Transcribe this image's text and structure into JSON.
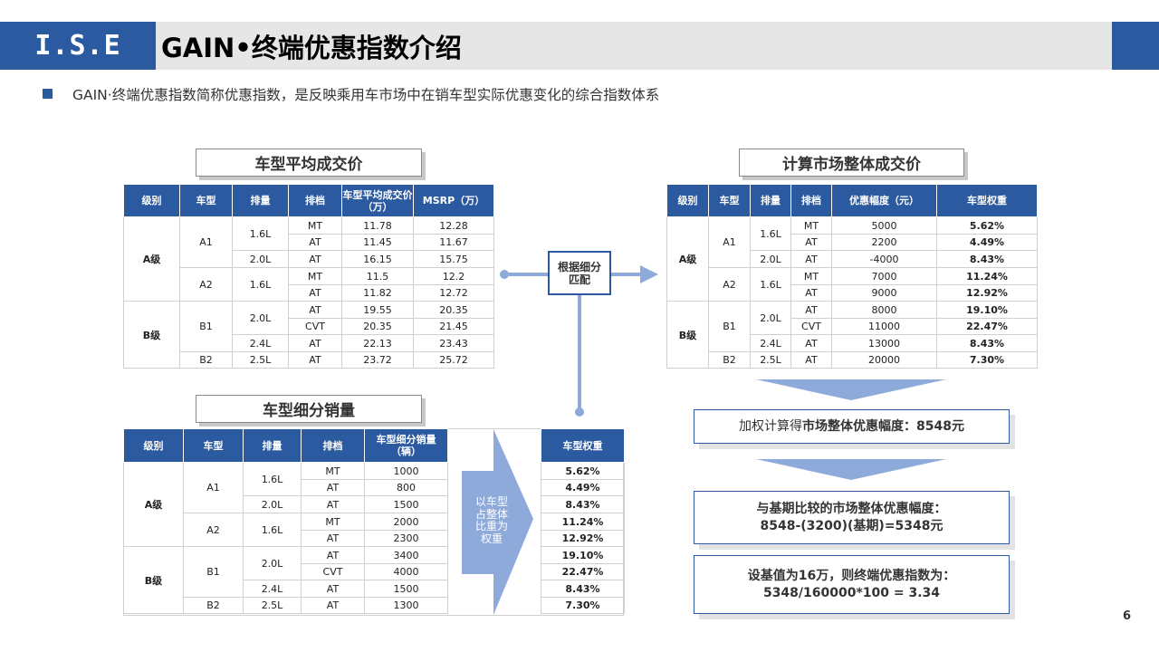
{
  "header": {
    "logo": "I.S.E",
    "title": "GAIN•终端优惠指数介绍"
  },
  "bullet": "GAIN·终端优惠指数简称优惠指数，是反映乘用车市场中在销车型实际优惠变化的综合指数体系",
  "table_price": {
    "title": "车型平均成交价",
    "headers": [
      "级别",
      "车型",
      "排量",
      "排档",
      "车型平均成交价（万）",
      "MSRP（万）"
    ],
    "level_a": "A级",
    "level_b": "B级",
    "models": [
      "A1",
      "A2",
      "B1",
      "B2"
    ],
    "disp": [
      "1.6L",
      "2.0L",
      "1.6L",
      "2.0L",
      "2.4L",
      "2.5L"
    ],
    "rows": [
      [
        "MT",
        "11.78",
        "12.28"
      ],
      [
        "AT",
        "11.45",
        "11.67"
      ],
      [
        "AT",
        "16.15",
        "15.75"
      ],
      [
        "MT",
        "11.5",
        "12.2"
      ],
      [
        "AT",
        "11.82",
        "12.72"
      ],
      [
        "AT",
        "19.55",
        "20.35"
      ],
      [
        "CVT",
        "20.35",
        "21.45"
      ],
      [
        "AT",
        "22.13",
        "23.43"
      ],
      [
        "AT",
        "23.72",
        "25.72"
      ]
    ]
  },
  "table_sales": {
    "title": "车型细分销量",
    "headers": [
      "级别",
      "车型",
      "排量",
      "排档",
      "车型细分销量（辆）"
    ],
    "level_a": "A级",
    "level_b": "B级",
    "models": [
      "A1",
      "A2",
      "B1",
      "B2"
    ],
    "disp": [
      "1.6L",
      "2.0L",
      "1.6L",
      "2.0L",
      "2.4L",
      "2.5L"
    ],
    "rows": [
      [
        "MT",
        "1000"
      ],
      [
        "AT",
        "800"
      ],
      [
        "AT",
        "1500"
      ],
      [
        "MT",
        "2000"
      ],
      [
        "AT",
        "2300"
      ],
      [
        "AT",
        "3400"
      ],
      [
        "CVT",
        "4000"
      ],
      [
        "AT",
        "1500"
      ],
      [
        "AT",
        "1300"
      ]
    ]
  },
  "weight_arrow_text": "以车型占整体比重为权重",
  "table_weights": {
    "header": "车型权重",
    "values": [
      "5.62%",
      "4.49%",
      "8.43%",
      "11.24%",
      "12.92%",
      "19.10%",
      "22.47%",
      "8.43%",
      "7.30%"
    ]
  },
  "match_box": {
    "line1": "根据细分",
    "line2": "匹配"
  },
  "table_market": {
    "title": "计算市场整体成交价",
    "headers": [
      "级别",
      "车型",
      "排量",
      "排档",
      "优惠幅度（元）",
      "车型权重"
    ],
    "level_a": "A级",
    "level_b": "B级",
    "models": [
      "A1",
      "A2",
      "B1",
      "B2"
    ],
    "disp": [
      "1.6L",
      "2.0L",
      "1.6L",
      "2.0L",
      "2.4L",
      "2.5L"
    ],
    "rows": [
      [
        "MT",
        "5000",
        "5.62%"
      ],
      [
        "AT",
        "2200",
        "4.49%"
      ],
      [
        "AT",
        "-4000",
        "8.43%"
      ],
      [
        "MT",
        "7000",
        "11.24%"
      ],
      [
        "AT",
        "9000",
        "12.92%"
      ],
      [
        "AT",
        "8000",
        "19.10%"
      ],
      [
        "CVT",
        "11000",
        "22.47%"
      ],
      [
        "AT",
        "13000",
        "8.43%"
      ],
      [
        "AT",
        "20000",
        "7.30%"
      ]
    ]
  },
  "result1": {
    "prefix": "加权计算得",
    "bold": "市场整体优惠幅度：8548元"
  },
  "result2": {
    "line1": "与基期比较的市场整体优惠幅度：",
    "line2": "8548-(3200)(基期)=5348元"
  },
  "result3": {
    "line1": "设基值为16万，则终端优惠指数为：",
    "line2": "5348/160000*100 = 3.34"
  },
  "page_number": "6",
  "colors": {
    "primary": "#2c5aa0",
    "header_bg": "#e6e6e6",
    "arrow": "#8eaadb"
  }
}
